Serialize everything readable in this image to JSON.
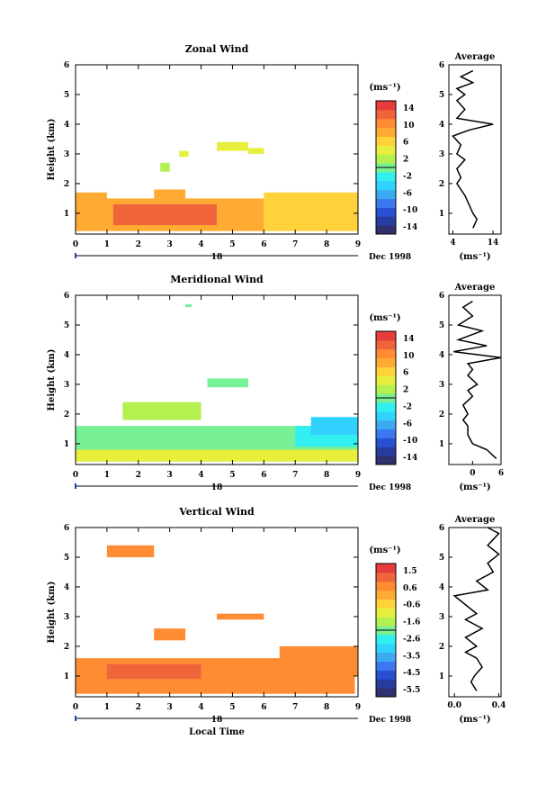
{
  "chart_data": [
    {
      "type": "heatmap",
      "title": "Zonal Wind",
      "xlabel": "",
      "ylabel": "Height (km)",
      "x_ticks": [
        "0",
        "1",
        "2",
        "3",
        "4",
        "5",
        "6",
        "7",
        "8",
        "9"
      ],
      "y_ticks": [
        "1",
        "2",
        "3",
        "4",
        "5",
        "6"
      ],
      "xlim": [
        0,
        9
      ],
      "ylim": [
        0.3,
        6
      ],
      "date_day": "18",
      "date_label": "Dec 1998",
      "colorbar": {
        "unit_label": "(ms⁻¹)",
        "ticks": [
          "14",
          "10",
          "6",
          "2",
          "-2",
          "-6",
          "-10",
          "-14"
        ],
        "range": [
          -16,
          16
        ]
      },
      "regions": [
        {
          "x0": 0,
          "x1": 6,
          "y0": 0.4,
          "y1": 1.5,
          "value": 9.5
        },
        {
          "x0": 6,
          "x1": 9,
          "y0": 0.4,
          "y1": 1.7,
          "value": 6.5
        },
        {
          "x0": 1.2,
          "x1": 4.5,
          "y0": 0.6,
          "y1": 1.3,
          "value": 12.5
        },
        {
          "x0": 0,
          "x1": 1,
          "y0": 1.4,
          "y1": 1.7,
          "value": 9
        },
        {
          "x0": 4.5,
          "x1": 5.5,
          "y0": 3.1,
          "y1": 3.4,
          "value": 5
        },
        {
          "x0": 5.5,
          "x1": 6,
          "y0": 3.0,
          "y1": 3.2,
          "value": 5
        },
        {
          "x0": 2.7,
          "x1": 3.0,
          "y0": 2.4,
          "y1": 2.7,
          "value": 2.5
        },
        {
          "x0": 3.3,
          "x1": 3.6,
          "y0": 2.9,
          "y1": 3.1,
          "value": 5
        },
        {
          "x0": 2.5,
          "x1": 3.5,
          "y0": 1.5,
          "y1": 1.8,
          "value": 9
        }
      ],
      "profile": {
        "title": "Average",
        "xlabel": "(ms⁻¹)",
        "x_ticks": [
          "4",
          "14"
        ],
        "xlim": [
          3,
          16
        ],
        "height": [
          0.5,
          0.8,
          1.0,
          1.3,
          1.6,
          1.8,
          2.0,
          2.2,
          2.5,
          2.8,
          3.0,
          3.3,
          3.6,
          3.8,
          4.0,
          4.2,
          4.5,
          4.8,
          5.0,
          5.2,
          5.4,
          5.6,
          5.8
        ],
        "values": [
          9,
          10,
          9,
          8,
          7,
          6,
          5,
          6,
          5,
          7,
          5,
          6,
          4,
          8,
          14,
          5,
          7,
          5,
          7,
          5,
          9,
          6,
          9
        ]
      }
    },
    {
      "type": "heatmap",
      "title": "Meridional Wind",
      "xlabel": "",
      "ylabel": "Height (km)",
      "x_ticks": [
        "0",
        "1",
        "2",
        "3",
        "4",
        "5",
        "6",
        "7",
        "8",
        "9"
      ],
      "y_ticks": [
        "1",
        "2",
        "3",
        "4",
        "5",
        "6"
      ],
      "xlim": [
        0,
        9
      ],
      "ylim": [
        0.3,
        6
      ],
      "date_day": "18",
      "date_label": "Dec 1998",
      "colorbar": {
        "unit_label": "(ms⁻¹)",
        "ticks": [
          "14",
          "10",
          "6",
          "2",
          "-2",
          "-6",
          "-10",
          "-14"
        ],
        "range": [
          -16,
          16
        ]
      },
      "regions": [
        {
          "x0": 0,
          "x1": 9,
          "y0": 0.4,
          "y1": 1.6,
          "value": 1
        },
        {
          "x0": 0,
          "x1": 9,
          "y0": 0.4,
          "y1": 0.8,
          "value": 4
        },
        {
          "x0": 7,
          "x1": 9,
          "y0": 0.9,
          "y1": 1.6,
          "value": -3
        },
        {
          "x0": 7.5,
          "x1": 9,
          "y0": 1.3,
          "y1": 1.9,
          "value": -4
        },
        {
          "x0": 1.5,
          "x1": 4,
          "y0": 1.8,
          "y1": 2.4,
          "value": 1.5
        },
        {
          "x0": 4.2,
          "x1": 5.5,
          "y0": 2.9,
          "y1": 3.2,
          "value": 0
        },
        {
          "x0": 3.5,
          "x1": 3.7,
          "y0": 5.6,
          "y1": 5.7,
          "value": 0
        }
      ],
      "profile": {
        "title": "Average",
        "xlabel": "(ms⁻¹)",
        "x_ticks": [
          "0",
          "6"
        ],
        "xlim": [
          -5,
          6
        ],
        "height": [
          0.5,
          0.8,
          1.0,
          1.3,
          1.6,
          1.8,
          2.0,
          2.3,
          2.6,
          2.8,
          3.0,
          3.3,
          3.5,
          3.7,
          3.9,
          4.1,
          4.3,
          4.5,
          4.8,
          5.0,
          5.3,
          5.6,
          5.8
        ],
        "values": [
          5,
          3,
          0,
          -1,
          -1,
          -2,
          -1,
          -2,
          0,
          -1,
          1,
          -1,
          0,
          -1,
          6,
          -4,
          3,
          -3,
          2,
          -3,
          0,
          -2,
          0
        ]
      }
    },
    {
      "type": "heatmap",
      "title": "Vertical Wind",
      "xlabel": "Local Time",
      "ylabel": "Height (km)",
      "x_ticks": [
        "0",
        "1",
        "2",
        "3",
        "4",
        "5",
        "6",
        "7",
        "8",
        "9"
      ],
      "y_ticks": [
        "1",
        "2",
        "3",
        "4",
        "5",
        "6"
      ],
      "xlim": [
        0,
        9
      ],
      "ylim": [
        0.3,
        6
      ],
      "date_day": "18",
      "date_label": "Dec 1998",
      "colorbar": {
        "unit_label": "(ms⁻¹)",
        "ticks": [
          "1.5",
          "0.6",
          "-0.6",
          "-1.6",
          "-2.6",
          "-3.5",
          "-4.5",
          "-5.5"
        ],
        "range": [
          -6,
          2
        ]
      },
      "regions": [
        {
          "x0": 0,
          "x1": 8.9,
          "y0": 0.4,
          "y1": 1.6,
          "value": 0.7
        },
        {
          "x0": 6.5,
          "x1": 9,
          "y0": 1.0,
          "y1": 2.0,
          "value": 0.7
        },
        {
          "x0": 1,
          "x1": 4,
          "y0": 0.9,
          "y1": 1.4,
          "value": 1.0
        },
        {
          "x0": 1,
          "x1": 2.5,
          "y0": 5.0,
          "y1": 5.4,
          "value": 0.7
        },
        {
          "x0": 2.5,
          "x1": 3.5,
          "y0": 2.2,
          "y1": 2.6,
          "value": 0.7
        },
        {
          "x0": 4.5,
          "x1": 6,
          "y0": 2.9,
          "y1": 3.1,
          "value": 0.9
        }
      ],
      "profile": {
        "title": "Average",
        "xlabel": "(ms⁻¹)",
        "x_ticks": [
          "0.0",
          "0.4"
        ],
        "xlim": [
          -0.05,
          0.42
        ],
        "height": [
          0.5,
          0.8,
          1.0,
          1.3,
          1.6,
          1.8,
          2.0,
          2.3,
          2.6,
          2.9,
          3.1,
          3.4,
          3.7,
          3.9,
          4.2,
          4.5,
          4.8,
          5.1,
          5.4,
          5.6,
          5.8,
          6.0
        ],
        "values": [
          0.2,
          0.15,
          0.18,
          0.25,
          0.2,
          0.1,
          0.2,
          0.1,
          0.25,
          0.1,
          0.2,
          0.1,
          0.0,
          0.3,
          0.2,
          0.35,
          0.3,
          0.4,
          0.3,
          0.35,
          0.4,
          0.3
        ]
      }
    }
  ]
}
